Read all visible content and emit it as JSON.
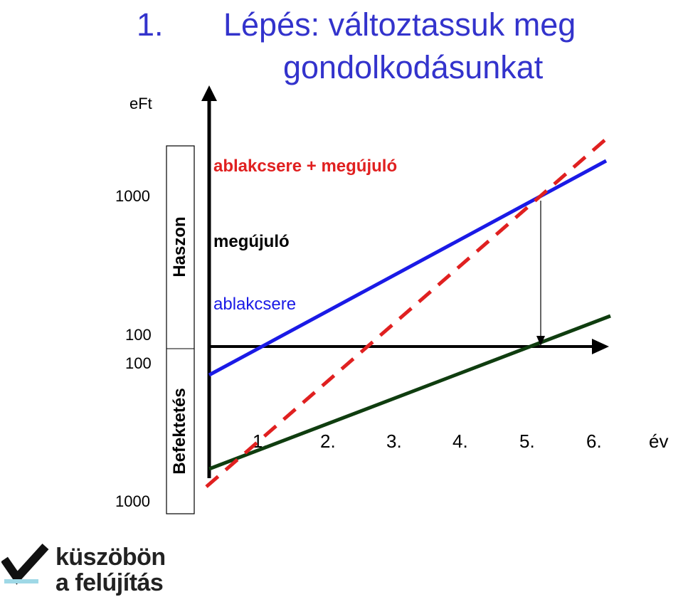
{
  "title": {
    "line1_number": "1.",
    "line1_text": "Lépés: változtassuk meg",
    "line2": "gondolkodásunkat"
  },
  "chart_data": {
    "type": "line",
    "ylabel": "eFt",
    "y_ticks": [
      "1000",
      "100",
      "100",
      "1000"
    ],
    "bracket_labels": [
      "Haszon",
      "Befektetés"
    ],
    "categories": [
      "1.",
      "2.",
      "3.",
      "4.",
      "5.",
      "6."
    ],
    "xlabel": "év",
    "series": [
      {
        "name": "ablakcsere + megújuló",
        "style": "dashed",
        "color": "#e02020"
      },
      {
        "name": "megújuló",
        "style": "solid",
        "color": "#1a1ae6"
      },
      {
        "name": "ablakcsere",
        "style": "solid",
        "color": "#0f3d0f"
      }
    ],
    "grid": false
  },
  "logo": {
    "line1": "küszöbön",
    "line2": "a felújítás"
  },
  "colors": {
    "title": "#3333cc",
    "label_red": "#e02020",
    "label_blue": "#1a1ae6"
  }
}
